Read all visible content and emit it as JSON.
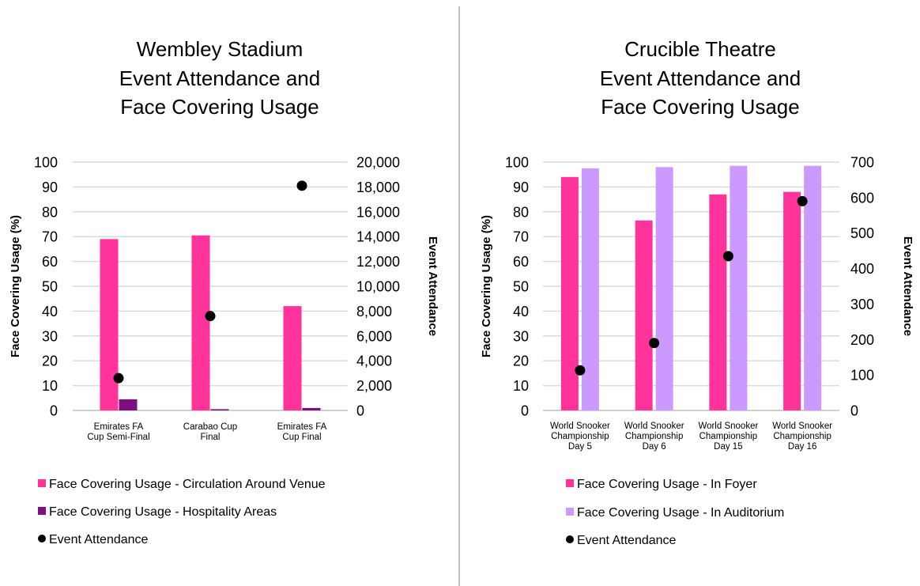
{
  "chart_data": [
    {
      "type": "bar",
      "title": [
        "Wembley Stadium",
        "Event Attendance and",
        "Face Covering Usage"
      ],
      "categories": [
        [
          "Emirates FA",
          "Cup Semi-Final"
        ],
        [
          "Carabao Cup",
          "Final"
        ],
        [
          "Emirates FA",
          "Cup Final"
        ]
      ],
      "ylabel": "Face Covering Usage (%)",
      "y2label": "Event Attendance",
      "ylim": [
        0,
        100
      ],
      "y2lim": [
        0,
        20000
      ],
      "yticks": [
        "0",
        "10",
        "20",
        "30",
        "40",
        "50",
        "60",
        "70",
        "80",
        "90",
        "100"
      ],
      "y2ticks": [
        "0",
        "2,000",
        "4,000",
        "6,000",
        "8,000",
        "10,000",
        "12,000",
        "14,000",
        "16,000",
        "18,000",
        "20,000"
      ],
      "grid": true,
      "legend_position": "bottom",
      "series": [
        {
          "name": "Face Covering Usage - Circulation Around Venue",
          "kind": "bar",
          "axis": "left",
          "color": "#ff3399",
          "values": [
            69,
            70.5,
            42
          ]
        },
        {
          "name": "Face Covering Usage - Hospitality Areas",
          "kind": "bar",
          "axis": "left",
          "color": "#7f0f7e",
          "values": [
            4.5,
            0.5,
            1
          ]
        },
        {
          "name": "Event Attendance",
          "kind": "scatter",
          "axis": "right",
          "color": "#000000",
          "values": [
            2600,
            7600,
            18100
          ]
        }
      ]
    },
    {
      "type": "bar",
      "title": [
        "Crucible Theatre",
        "Event Attendance and",
        "Face Covering Usage"
      ],
      "categories": [
        [
          "World Snooker",
          "Championship",
          "Day 5"
        ],
        [
          "World Snooker",
          "Championship",
          "Day 6"
        ],
        [
          "World Snooker",
          "Championship",
          "Day 15"
        ],
        [
          "World Snooker",
          "Championship",
          "Day 16"
        ]
      ],
      "ylabel": "Face Covering Usage (%)",
      "y2label": "Event Attendance",
      "ylim": [
        0,
        100
      ],
      "y2lim": [
        0,
        700
      ],
      "yticks": [
        "0",
        "10",
        "20",
        "30",
        "40",
        "50",
        "60",
        "70",
        "80",
        "90",
        "100"
      ],
      "y2ticks": [
        "0",
        "100",
        "200",
        "300",
        "400",
        "500",
        "600",
        "700"
      ],
      "grid": true,
      "legend_position": "bottom",
      "series": [
        {
          "name": "Face Covering Usage - In Foyer",
          "kind": "bar",
          "axis": "left",
          "color": "#ff3399",
          "values": [
            94,
            76.5,
            87,
            88
          ]
        },
        {
          "name": "Face Covering Usage - In Auditorium",
          "kind": "bar",
          "axis": "left",
          "color": "#cc99ff",
          "values": [
            97.5,
            98,
            98.5,
            98.5
          ]
        },
        {
          "name": "Event Attendance",
          "kind": "scatter",
          "axis": "right",
          "color": "#000000",
          "values": [
            113,
            190,
            435,
            590
          ]
        }
      ]
    }
  ]
}
